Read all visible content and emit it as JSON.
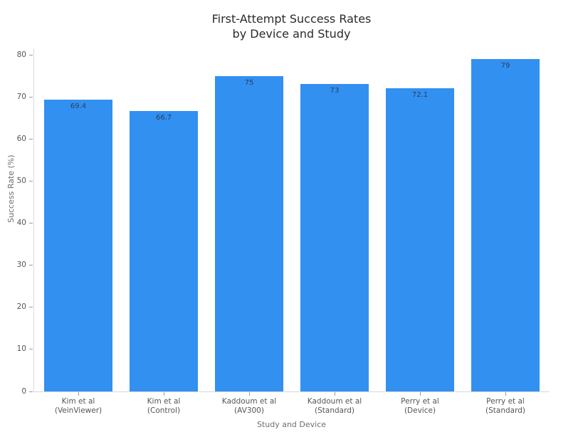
{
  "chart_data": {
    "type": "bar",
    "title": "First-Attempt Success Rates\nby Device and Study",
    "xlabel": "Study and Device",
    "ylabel": "Success Rate (%)",
    "categories": [
      "Kim et al\n(VeinViewer)",
      "Kim et al\n(Control)",
      "Kaddoum et al\n(AV300)",
      "Kaddoum et al\n(Standard)",
      "Perry et al\n(Device)",
      "Perry et al\n(Standard)"
    ],
    "values": [
      69.4,
      66.7,
      75,
      73,
      72.1,
      79
    ],
    "value_labels": [
      "69.4",
      "66.7",
      "75",
      "73",
      "72.1",
      "79"
    ],
    "yticks": [
      0,
      10,
      20,
      30,
      40,
      50,
      60,
      70,
      80
    ],
    "ylim": [
      0,
      82
    ],
    "grid": false,
    "legend": "none",
    "colors": {
      "bar": "#3190f0",
      "value_label": "#2a3f5f",
      "title": "#2a2a2a",
      "tick_label": "#555555",
      "axis_title": "#6e6e6e",
      "axis_line": "#d9d9d9"
    }
  }
}
